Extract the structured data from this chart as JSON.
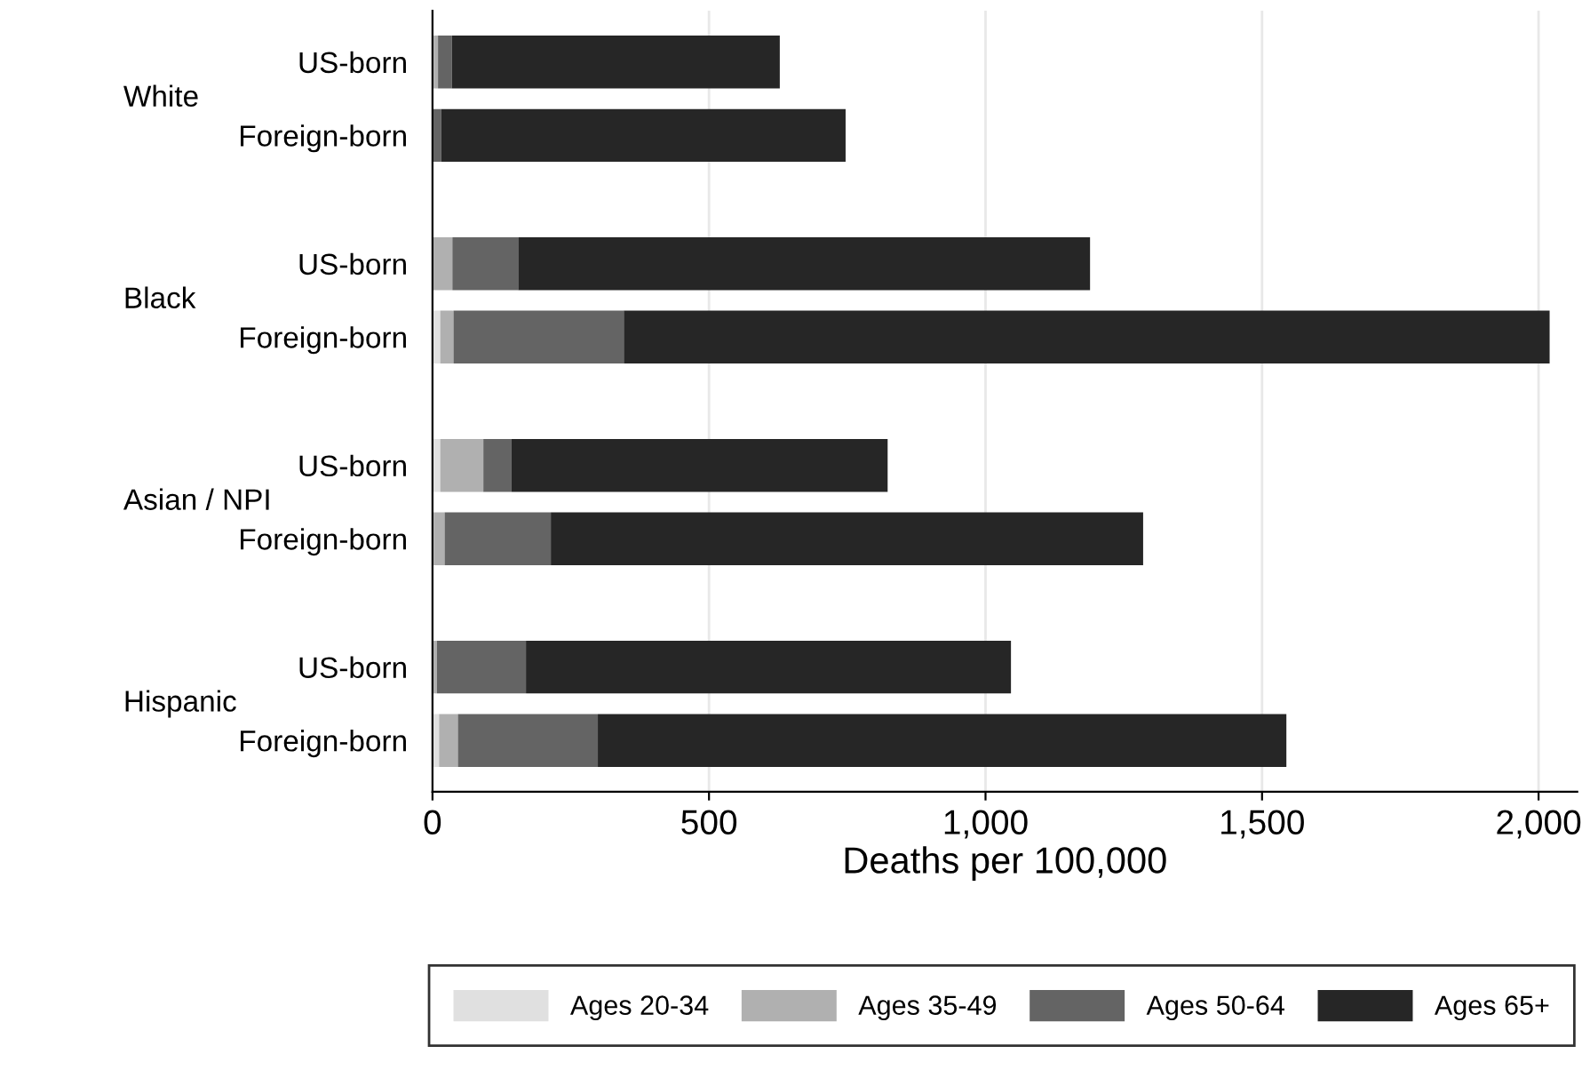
{
  "chart_data": {
    "type": "bar",
    "orientation": "horizontal",
    "stacked": true,
    "categories": [
      "US-born",
      "Foreign-born",
      "US-born",
      "Foreign-born",
      "US-born",
      "Foreign-born",
      "US-born",
      "Foreign-born"
    ],
    "annotations": [
      "White",
      "Black",
      "Asian / NPI",
      "Hispanic"
    ],
    "series": [
      {
        "name": "Ages 20-34",
        "color": "#e0e0e0",
        "values": [
          2,
          1,
          null,
          14,
          14,
          2,
          null,
          12
        ]
      },
      {
        "name": "Ages 35-49",
        "color": "#b0b0b0",
        "values": [
          8,
          null,
          36,
          24,
          78,
          20,
          8,
          34
        ]
      },
      {
        "name": "Ages 50-64",
        "color": "#646464",
        "values": [
          25,
          15,
          119,
          308,
          51,
          192,
          161,
          253
        ]
      },
      {
        "name": "Ages 65+",
        "color": "#262626",
        "values": [
          593,
          731,
          1034,
          1674,
          680,
          1071,
          877,
          1245
        ]
      }
    ],
    "xlabel": "Deaths per 100,000",
    "xlim": [
      0,
      2070
    ],
    "xticks": [
      0,
      500,
      {
        "value": 1000,
        "label": "1,000"
      },
      {
        "value": 1500,
        "label": "1,500"
      },
      {
        "value": 2000,
        "label": "2,000"
      }
    ],
    "grid": "x",
    "legend": "bottom"
  }
}
